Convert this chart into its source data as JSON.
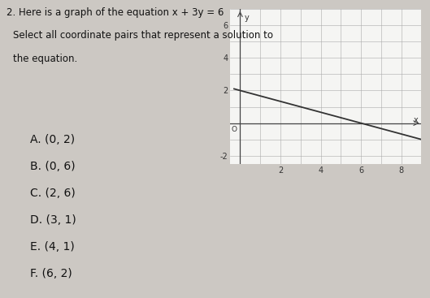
{
  "title": "2. Here is a graph of the equation x + 3y = 6",
  "subtitle_line1": "Select all coordinate pairs that represent a solution to",
  "subtitle_line2": "the equation.",
  "choices": [
    "A. (0, 2)",
    "B. (0, 6)",
    "C. (2, 6)",
    "D. (3, 1)",
    "E. (4, 1)",
    "F. (6, 2)"
  ],
  "x_range": [
    -0.5,
    9
  ],
  "y_range": [
    -2.5,
    7
  ],
  "x_ticks": [
    2,
    4,
    6,
    8
  ],
  "y_ticks": [
    -2,
    2,
    4,
    6
  ],
  "graph_bg": "#f5f5f3",
  "page_bg": "#ccc8c3",
  "line_color": "#333333",
  "grid_color": "#aaaaaa",
  "axis_color": "#444444",
  "text_color": "#111111",
  "title_fontsize": 8.5,
  "subtitle_fontsize": 8.5,
  "choice_fontsize": 10,
  "tick_fontsize": 7
}
